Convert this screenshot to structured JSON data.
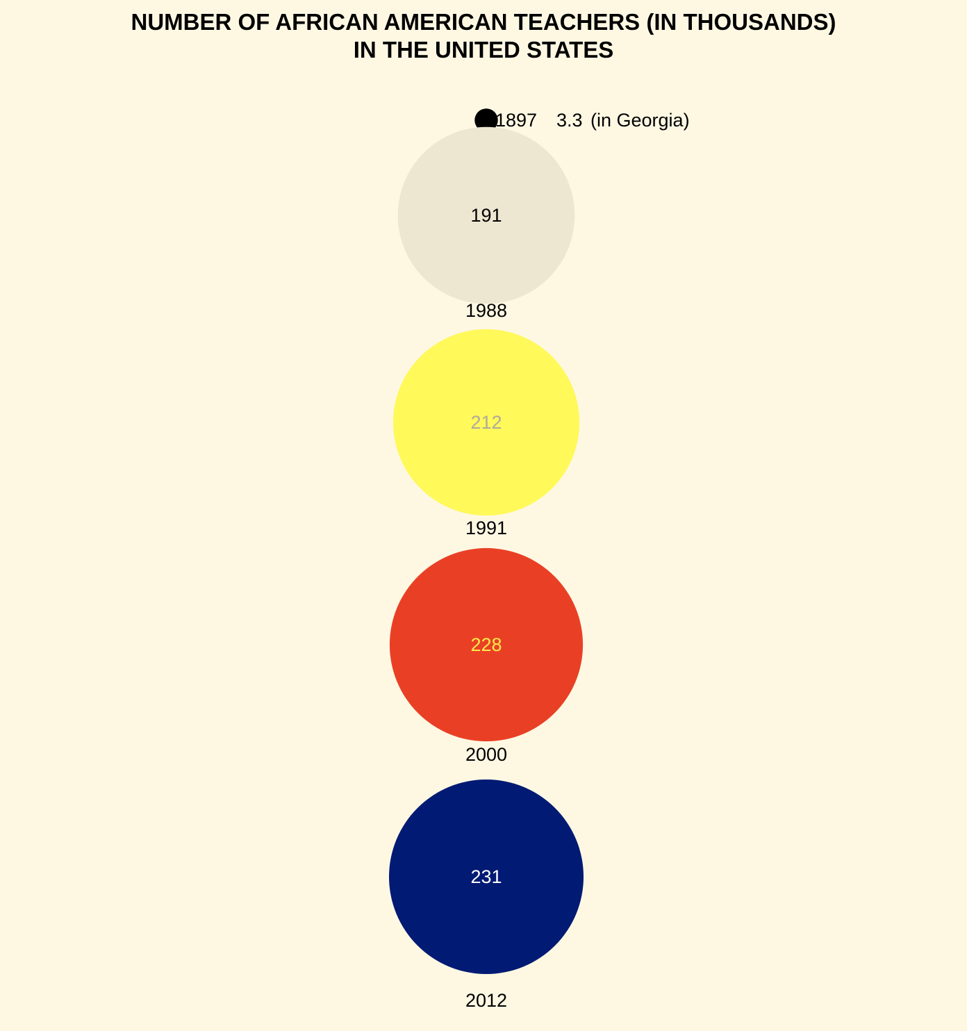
{
  "title": {
    "line1": "NUMBER OF AFRICAN AMERICAN TEACHERS (IN THOUSANDS)",
    "line2": "IN THE UNITED STATES"
  },
  "chart_data": {
    "type": "proportional-circles",
    "title": "NUMBER OF AFRICAN AMERICAN TEACHERS (IN THOUSANDS) IN THE UNITED STATES",
    "unit": "thousands",
    "series": [
      {
        "year": "1897",
        "value": 3.3,
        "value_label": "3.3",
        "note": "(in Georgia)",
        "fill": "#000000",
        "text_color": "#000000"
      },
      {
        "year": "1988",
        "value": 191,
        "value_label": "191",
        "fill": "#EDE7D2",
        "text_color": "#000000"
      },
      {
        "year": "1991",
        "value": 212,
        "value_label": "212",
        "fill": "#FFF95A",
        "text_color": "#B0A99A"
      },
      {
        "year": "2000",
        "value": 228,
        "value_label": "228",
        "fill": "#E94025",
        "text_color": "#FFE94A"
      },
      {
        "year": "2012",
        "value": 231,
        "value_label": "231",
        "fill": "#011A73",
        "text_color": "#FFFFFF"
      }
    ]
  },
  "colors": {
    "background": "#FEF8E3",
    "text": "#000000"
  }
}
